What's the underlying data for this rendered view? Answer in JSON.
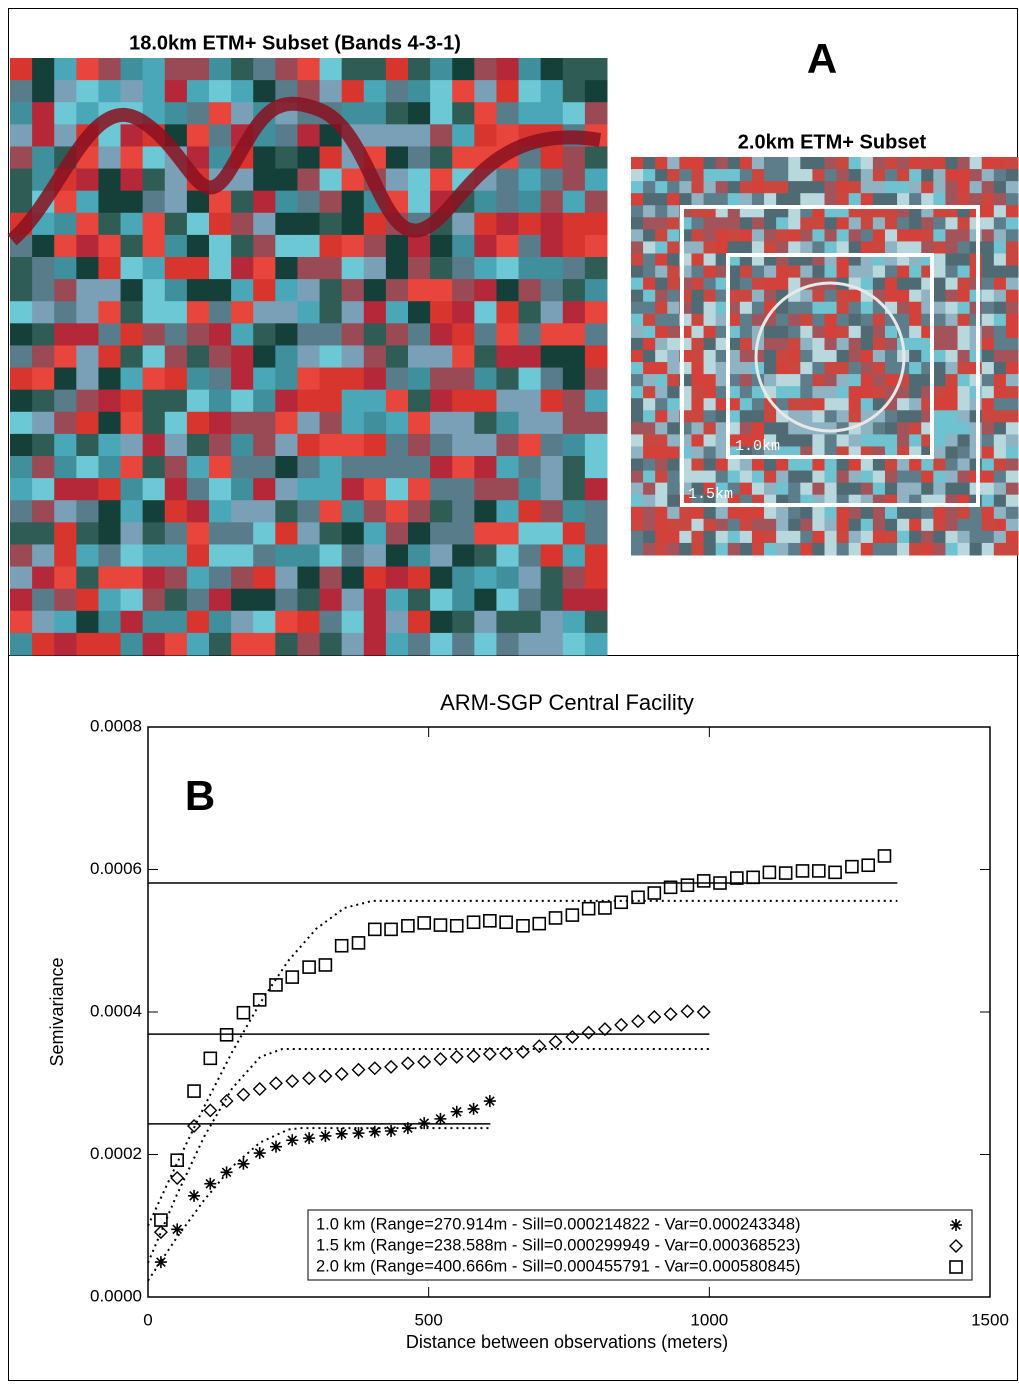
{
  "panel_a": {
    "label": "A",
    "image1_title": "18.0km ETM+ Subset (Bands 4-3-1)",
    "image2_title": "2.0km ETM+ Subset",
    "box_labels": [
      "1.0km",
      "1.5km"
    ]
  },
  "chart_data": {
    "type": "scatter",
    "title": "ARM-SGP Central Facility",
    "panel_label": "B",
    "x_label": "Distance between observations (meters)",
    "y_label": "Semivariance",
    "xlim": [
      0,
      1500
    ],
    "xticks": [
      0,
      500,
      1000,
      1500
    ],
    "ylim": [
      0,
      0.0008
    ],
    "yticks": [
      {
        "value": 0,
        "label": "0.0000"
      },
      {
        "value": 0.0002,
        "label": "0.0002"
      },
      {
        "value": 0.0004,
        "label": "0.0004"
      },
      {
        "value": 0.0006,
        "label": "0.0006"
      },
      {
        "value": 0.0008,
        "label": "0.0008"
      }
    ],
    "series": [
      {
        "name": "1.0 km (Range=270.914m - Sill=0.000214822 - Var=0.000243348)",
        "marker": "asterisk",
        "color": "#000000",
        "x": [
          23,
          52,
          82,
          111,
          140,
          170,
          199,
          228,
          257,
          287,
          316,
          345,
          375,
          404,
          433,
          463,
          492,
          521,
          550,
          580,
          609
        ],
        "values": [
          4.9e-05,
          9.5e-05,
          0.000142,
          0.000159,
          0.000175,
          0.000187,
          0.000202,
          0.000211,
          0.00022,
          0.000223,
          0.000226,
          0.000229,
          0.00023,
          0.000232,
          0.000233,
          0.000237,
          0.000244,
          0.00025,
          0.00026,
          0.000264,
          0.000275
        ]
      },
      {
        "name": "1.5 km (Range=238.588m - Sill=0.000299949 - Var=0.000368523)",
        "marker": "diamond",
        "color": "#000000",
        "x": [
          23,
          52,
          82,
          111,
          140,
          170,
          199,
          228,
          257,
          287,
          316,
          345,
          375,
          404,
          433,
          463,
          492,
          521,
          550,
          580,
          609,
          638,
          668,
          697,
          726,
          756,
          785,
          814,
          843,
          873,
          902,
          931,
          961,
          990
        ],
        "values": [
          9.1e-05,
          0.000167,
          0.00024,
          0.000262,
          0.000275,
          0.000284,
          0.000292,
          0.0003,
          0.000303,
          0.000307,
          0.00031,
          0.000313,
          0.000319,
          0.000321,
          0.000323,
          0.000328,
          0.00033,
          0.000334,
          0.000337,
          0.000338,
          0.000341,
          0.000342,
          0.000344,
          0.000352,
          0.000358,
          0.000365,
          0.000371,
          0.000376,
          0.000382,
          0.000387,
          0.000393,
          0.000397,
          0.000401,
          0.0004
        ]
      },
      {
        "name": "2.0 km (Range=400.666m - Sill=0.000455791 - Var=0.000580845)",
        "marker": "square",
        "color": "#000000",
        "x": [
          23,
          52,
          82,
          111,
          140,
          170,
          199,
          228,
          257,
          287,
          316,
          345,
          375,
          404,
          433,
          463,
          492,
          521,
          550,
          580,
          609,
          638,
          668,
          697,
          726,
          756,
          785,
          814,
          843,
          873,
          902,
          931,
          961,
          990,
          1019,
          1049,
          1078,
          1107,
          1136,
          1166,
          1195,
          1224,
          1254,
          1283,
          1312
        ],
        "values": [
          0.000108,
          0.000192,
          0.000289,
          0.000335,
          0.000368,
          0.000399,
          0.000417,
          0.000438,
          0.000449,
          0.000463,
          0.000466,
          0.000493,
          0.000497,
          0.000516,
          0.000516,
          0.000521,
          0.000525,
          0.000522,
          0.000521,
          0.000526,
          0.000528,
          0.000526,
          0.000521,
          0.000524,
          0.000532,
          0.000536,
          0.000545,
          0.000546,
          0.000554,
          0.000561,
          0.000567,
          0.000575,
          0.000578,
          0.000584,
          0.000581,
          0.000588,
          0.000589,
          0.000596,
          0.000595,
          0.000598,
          0.000598,
          0.000596,
          0.000604,
          0.000606,
          0.000619
        ]
      }
    ],
    "model_lines": [
      {
        "style": "solid",
        "x": [
          0,
          610
        ],
        "values": [
          0.000243,
          0.000243
        ]
      },
      {
        "style": "solid",
        "x": [
          0,
          1000
        ],
        "values": [
          0.000369,
          0.000369
        ]
      },
      {
        "style": "solid",
        "x": [
          0,
          1335
        ],
        "values": [
          0.000581,
          0.000581
        ]
      },
      {
        "style": "dotted",
        "x": [
          0,
          50,
          100,
          150,
          200,
          250,
          271,
          610
        ],
        "values": [
          2.3e-05,
          8.2e-05,
          0.000136,
          0.000183,
          0.000217,
          0.000235,
          0.000237,
          0.000237
        ]
      },
      {
        "style": "dotted",
        "x": [
          0,
          50,
          100,
          150,
          200,
          239,
          1000
        ],
        "values": [
          4.8e-05,
          0.000141,
          0.000225,
          0.000293,
          0.000337,
          0.000348,
          0.000348
        ]
      },
      {
        "style": "dotted",
        "x": [
          0,
          50,
          100,
          150,
          200,
          250,
          300,
          350,
          400,
          1335
        ],
        "values": [
          0.0001,
          0.000185,
          0.000267,
          0.000344,
          0.000413,
          0.000472,
          0.000517,
          0.000546,
          0.000556,
          0.000556
        ]
      }
    ]
  }
}
